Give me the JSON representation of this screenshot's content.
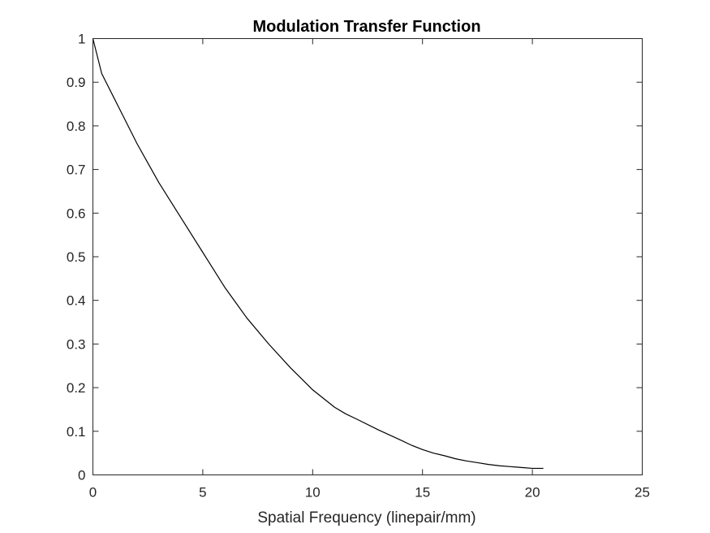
{
  "chart_data": {
    "type": "line",
    "title": "Modulation Transfer Function",
    "xlabel": "Spatial Frequency (linepair/mm)",
    "ylabel": "",
    "xlim": [
      0,
      25
    ],
    "ylim": [
      0,
      1
    ],
    "xticks": [
      0,
      5,
      10,
      15,
      20,
      25
    ],
    "yticks": [
      0,
      0.1,
      0.2,
      0.3,
      0.4,
      0.5,
      0.6,
      0.7,
      0.8,
      0.9,
      1
    ],
    "xtick_labels": [
      "0",
      "5",
      "10",
      "15",
      "20",
      "25"
    ],
    "ytick_labels": [
      "0",
      "0.1",
      "0.2",
      "0.3",
      "0.4",
      "0.5",
      "0.6",
      "0.7",
      "0.8",
      "0.9",
      "1"
    ],
    "grid": false,
    "series": [
      {
        "color": "#000000",
        "x": [
          0,
          0.2,
          0.4,
          1,
          1.5,
          2,
          2.5,
          3,
          3.5,
          4,
          5,
          6,
          6.5,
          7,
          8,
          9,
          9.5,
          10,
          11,
          11.5,
          12,
          13,
          14,
          14.5,
          15,
          15.5,
          16,
          16.5,
          17,
          17.5,
          18,
          18.5,
          19,
          19.5,
          20,
          20.5
        ],
        "y": [
          1.0,
          0.96,
          0.92,
          0.86,
          0.81,
          0.76,
          0.715,
          0.67,
          0.63,
          0.59,
          0.51,
          0.43,
          0.395,
          0.36,
          0.3,
          0.245,
          0.22,
          0.195,
          0.155,
          0.14,
          0.128,
          0.103,
          0.08,
          0.068,
          0.058,
          0.05,
          0.044,
          0.037,
          0.032,
          0.028,
          0.024,
          0.021,
          0.019,
          0.017,
          0.015,
          0.015
        ]
      }
    ]
  }
}
